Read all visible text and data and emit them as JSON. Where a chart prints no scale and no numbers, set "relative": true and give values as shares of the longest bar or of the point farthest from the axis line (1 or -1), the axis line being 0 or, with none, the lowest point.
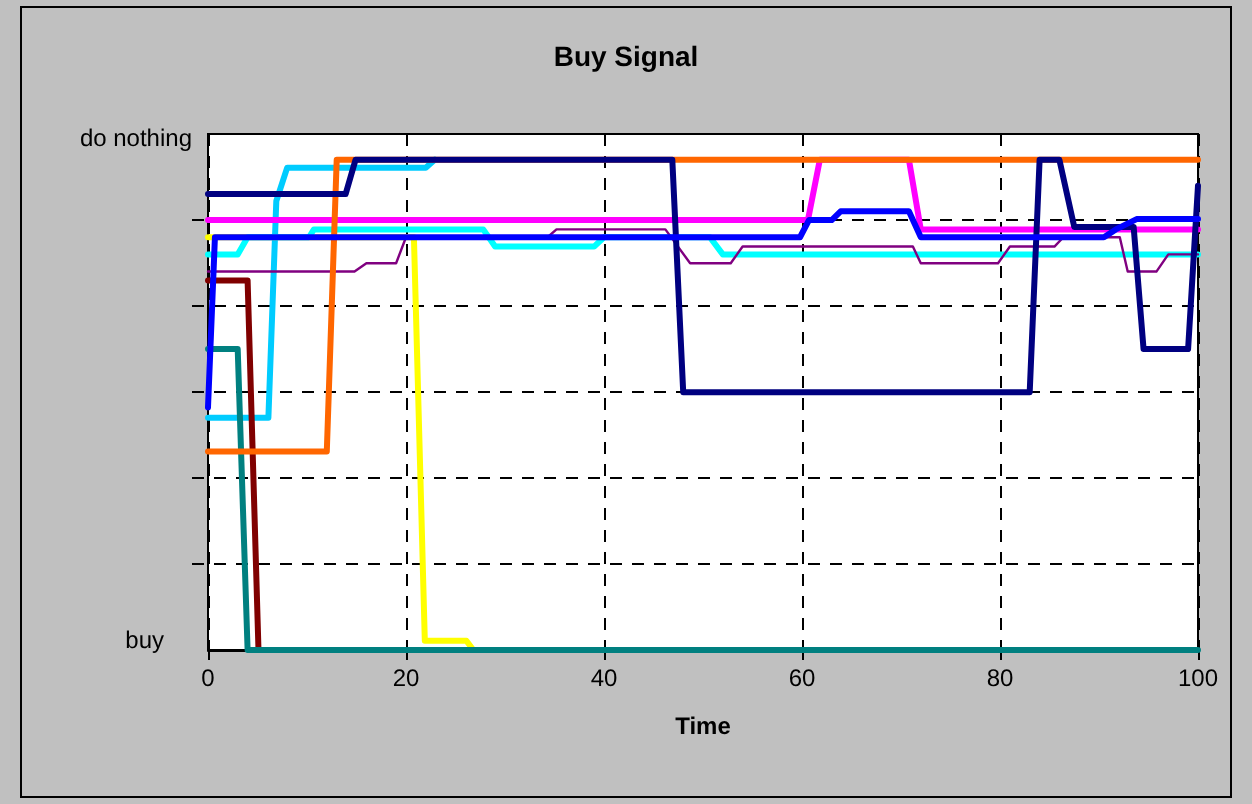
{
  "chart_data": {
    "type": "line",
    "title": "Buy Signal",
    "xlabel": "Time",
    "xlim": [
      0,
      100
    ],
    "xticks": [
      0,
      20,
      40,
      60,
      80,
      100
    ],
    "relative": true,
    "annotations": [
      "do nothing",
      "buy"
    ],
    "grid": true,
    "marker": "none",
    "line_style": "solid",
    "series": [
      {
        "color": "#00ccff",
        "x": [
          0,
          6.1,
          6.9,
          8,
          22,
          22.9
        ],
        "values": [
          0.474,
          0.474,
          0.916,
          0.984,
          0.984,
          1
        ]
      },
      {
        "color": "#ffff00",
        "x": [
          0,
          20.8,
          21.9,
          26.1,
          26.8
        ],
        "values": [
          0.842,
          0.842,
          0.019,
          0.019,
          0
        ]
      },
      {
        "color": "#800000",
        "x": [
          0,
          4,
          5.1
        ],
        "values": [
          0.754,
          0.754,
          0
        ]
      },
      {
        "color": "#008080",
        "x": [
          0,
          3,
          4,
          100
        ],
        "values": [
          0.614,
          0.614,
          0,
          0
        ]
      },
      {
        "color": "#00ffff",
        "x": [
          0,
          3,
          4,
          10.2,
          10.7,
          27.8,
          29,
          39,
          40,
          50.7,
          52,
          100
        ],
        "values": [
          0.807,
          0.807,
          0.842,
          0.842,
          0.858,
          0.858,
          0.823,
          0.823,
          0.842,
          0.842,
          0.807,
          0.807
        ]
      },
      {
        "color": "#800080",
        "x": [
          0,
          14.8,
          16,
          19,
          20,
          34.3,
          35.2,
          46.2,
          48.7,
          52.8,
          54,
          71.2,
          72,
          79.8,
          81,
          85.5,
          86.4,
          92.1,
          92.9,
          95.8,
          97,
          100
        ],
        "values": [
          0.772,
          0.772,
          0.789,
          0.789,
          0.842,
          0.842,
          0.858,
          0.858,
          0.789,
          0.789,
          0.823,
          0.823,
          0.789,
          0.789,
          0.823,
          0.823,
          0.842,
          0.842,
          0.772,
          0.772,
          0.807,
          0.807
        ]
      },
      {
        "color": "#ff00ff",
        "x": [
          0,
          60.6,
          61.8,
          70.8,
          72,
          100
        ],
        "values": [
          0.877,
          0.877,
          1,
          1,
          0.858,
          0.858
        ]
      },
      {
        "color": "#ff6600",
        "x": [
          0,
          12,
          13,
          100
        ],
        "values": [
          0.405,
          0.405,
          1,
          1
        ]
      },
      {
        "color": "#000080",
        "x": [
          0,
          13.9,
          14.9,
          46.9,
          48,
          83,
          84,
          86,
          87.5,
          93.5,
          94.5,
          99,
          100
        ],
        "values": [
          0.93,
          0.93,
          1,
          1,
          0.526,
          0.526,
          1,
          1,
          0.863,
          0.863,
          0.614,
          0.614,
          0.947
        ]
      },
      {
        "color": "#0000ff",
        "x": [
          0,
          0.7,
          59.8,
          60.7,
          63,
          63.9,
          70.8,
          72,
          90.5,
          91.7,
          93.8,
          100
        ],
        "values": [
          0.495,
          0.842,
          0.842,
          0.877,
          0.877,
          0.895,
          0.895,
          0.842,
          0.842,
          0.858,
          0.879,
          0.879
        ]
      }
    ]
  }
}
